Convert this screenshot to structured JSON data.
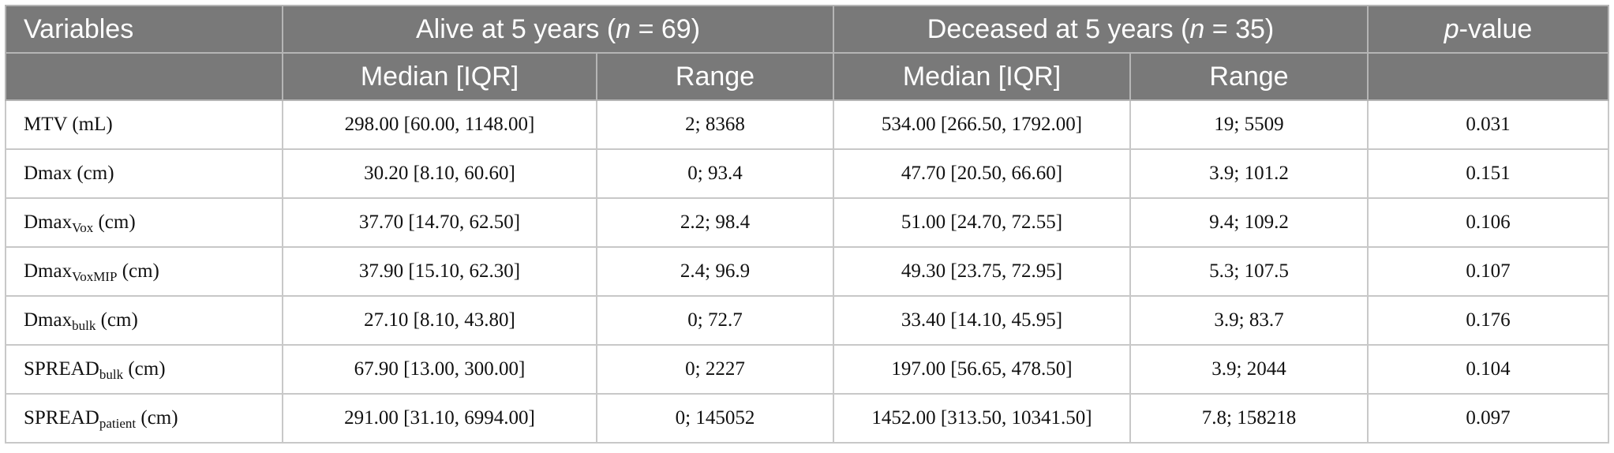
{
  "header": {
    "variables": "Variables",
    "alive_prefix": "Alive at 5 years (",
    "alive_n": "n",
    "alive_suffix": " = 69)",
    "deceased_prefix": "Deceased at 5 years (",
    "deceased_n": "n",
    "deceased_suffix": " = 35)",
    "p_italic": "p",
    "p_suffix": "-value",
    "median_iqr": "Median [IQR]",
    "range": "Range"
  },
  "rows": [
    {
      "var_base": "MTV (mL)",
      "var_sub": "",
      "var_unit": "",
      "alive_median": "298.00 [60.00, 1148.00]",
      "alive_range": "2; 8368",
      "dec_median": "534.00 [266.50, 1792.00]",
      "dec_range": "19; 5509",
      "p": "0.031"
    },
    {
      "var_base": "Dmax (cm)",
      "var_sub": "",
      "var_unit": "",
      "alive_median": "30.20 [8.10, 60.60]",
      "alive_range": "0; 93.4",
      "dec_median": "47.70 [20.50, 66.60]",
      "dec_range": "3.9; 101.2",
      "p": "0.151"
    },
    {
      "var_base": "Dmax",
      "var_sub": "Vox",
      "var_unit": " (cm)",
      "alive_median": "37.70 [14.70, 62.50]",
      "alive_range": "2.2; 98.4",
      "dec_median": "51.00 [24.70, 72.55]",
      "dec_range": "9.4; 109.2",
      "p": "0.106"
    },
    {
      "var_base": "Dmax",
      "var_sub": "VoxMIP",
      "var_unit": " (cm)",
      "alive_median": "37.90 [15.10, 62.30]",
      "alive_range": "2.4; 96.9",
      "dec_median": "49.30 [23.75, 72.95]",
      "dec_range": "5.3; 107.5",
      "p": "0.107"
    },
    {
      "var_base": "Dmax",
      "var_sub": "bulk",
      "var_unit": " (cm)",
      "alive_median": "27.10 [8.10, 43.80]",
      "alive_range": "0; 72.7",
      "dec_median": "33.40 [14.10, 45.95]",
      "dec_range": "3.9; 83.7",
      "p": "0.176"
    },
    {
      "var_base": "SPREAD",
      "var_sub": "bulk",
      "var_unit": " (cm)",
      "alive_median": "67.90 [13.00, 300.00]",
      "alive_range": "0; 2227",
      "dec_median": "197.00 [56.65, 478.50]",
      "dec_range": "3.9; 2044",
      "p": "0.104"
    },
    {
      "var_base": "SPREAD",
      "var_sub": "patient",
      "var_unit": " (cm)",
      "alive_median": "291.00 [31.10, 6994.00]",
      "alive_range": "0; 145052",
      "dec_median": "1452.00 [313.50, 10341.50]",
      "dec_range": "7.8; 158218",
      "p": "0.097"
    }
  ]
}
